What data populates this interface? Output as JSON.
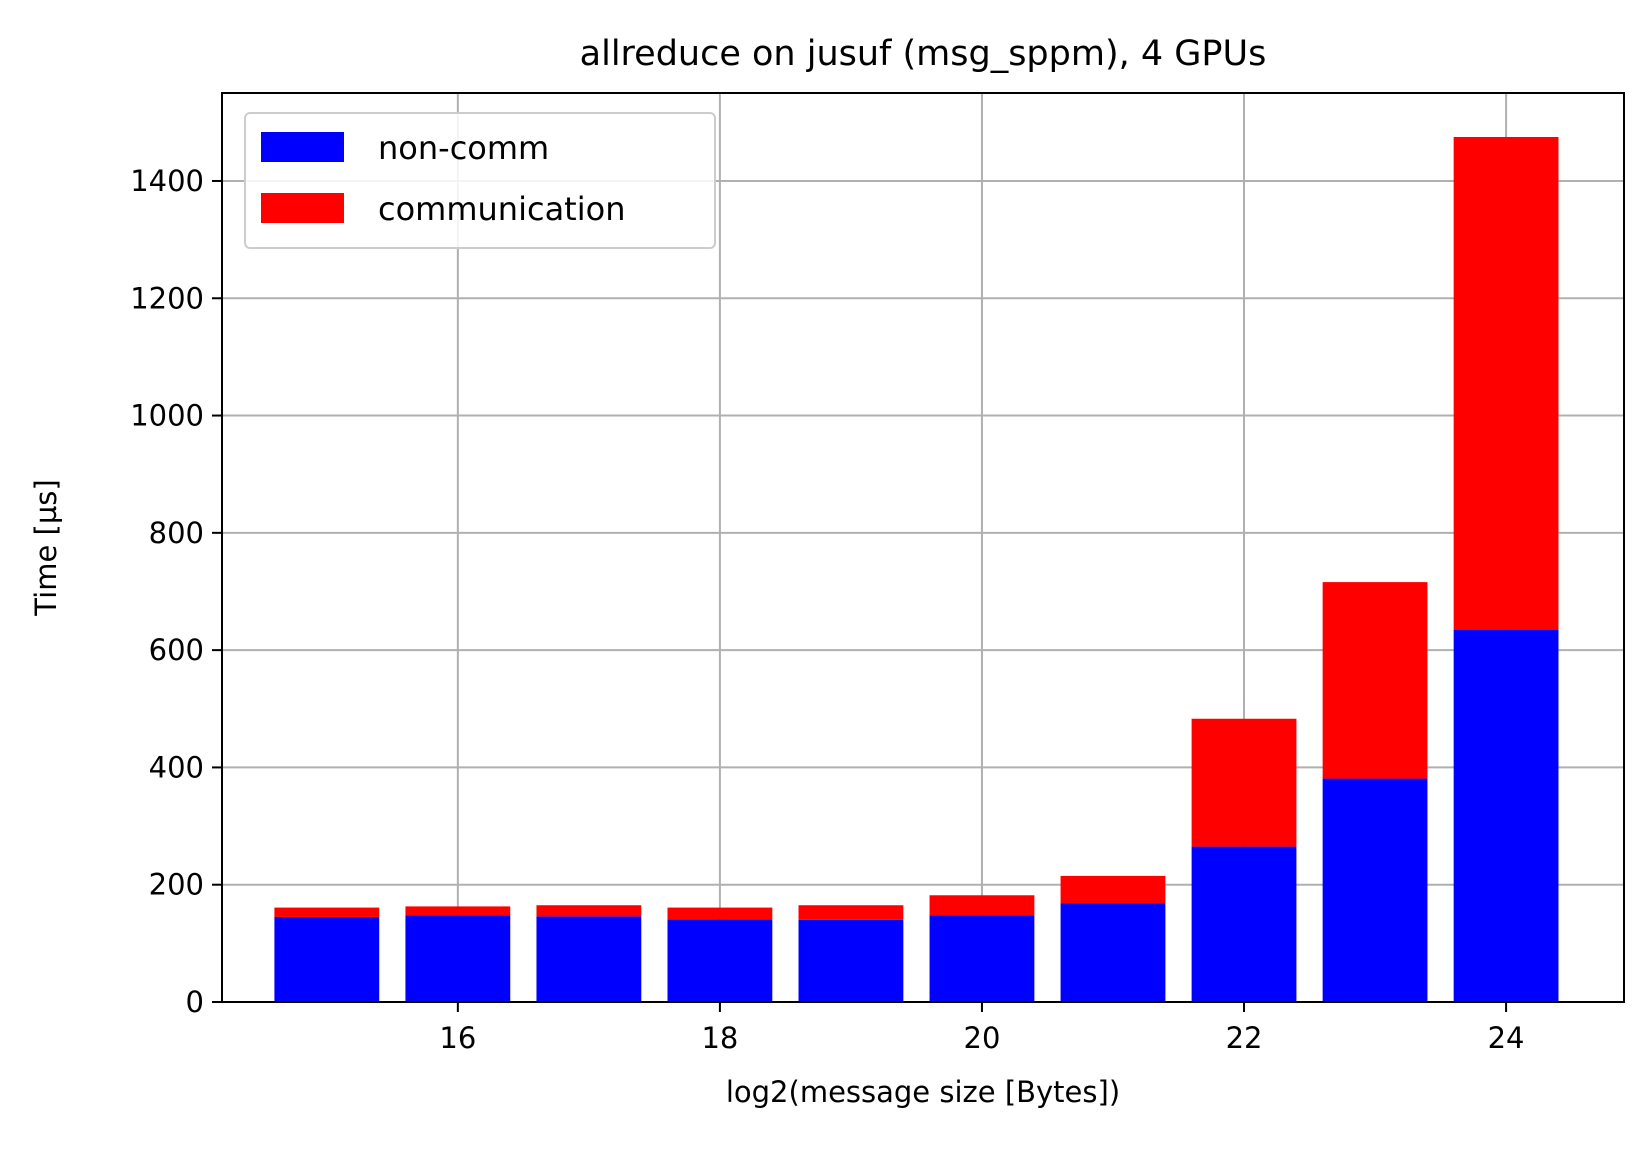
{
  "chart_data": {
    "type": "bar",
    "stacked": true,
    "title": "allreduce on jusuf (msg_sppm), 4 GPUs",
    "xlabel": "log2(message size [Bytes])",
    "ylabel": "Time [µs]",
    "x": [
      15,
      16,
      17,
      18,
      19,
      20,
      21,
      22,
      23,
      24
    ],
    "xlim": [
      14.2,
      24.9
    ],
    "ylim": [
      0,
      1550
    ],
    "xticks": [
      16,
      18,
      20,
      22,
      24
    ],
    "yticks": [
      0,
      200,
      400,
      600,
      800,
      1000,
      1200,
      1400
    ],
    "grid": true,
    "legend_position": "upper left",
    "series": [
      {
        "name": "non-comm",
        "color": "#0000ff",
        "values": [
          145,
          148,
          146,
          141,
          140,
          148,
          168,
          265,
          381,
          635
        ]
      },
      {
        "name": "communication",
        "color": "#ff0000",
        "values": [
          16,
          15,
          19,
          20,
          25,
          34,
          47,
          218,
          335,
          840
        ]
      }
    ]
  }
}
